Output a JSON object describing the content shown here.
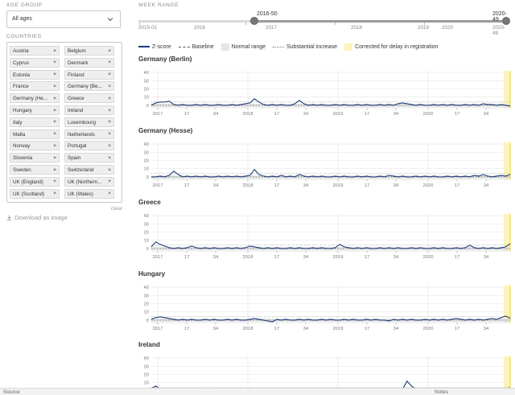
{
  "sidebar": {
    "age_group_label": "AGE GROUP",
    "age_group_value": "All ages",
    "countries_label": "COUNTRIES",
    "countries": [
      "Austria",
      "Belgium",
      "Cyprus",
      "Denmark",
      "Estonia",
      "Finland",
      "France",
      "Germany (Be...",
      "Germany (He...",
      "Greece",
      "Hungary",
      "Ireland",
      "Italy",
      "Luxembourg",
      "Malta",
      "Netherlands",
      "Norway",
      "Portugal",
      "Slovenia",
      "Spain",
      "Sweden",
      "Switzerland",
      "UK (England)",
      "UK (Northern...",
      "UK (Scotland)",
      "UK (Wales)"
    ],
    "chip_remove_symbol": "×",
    "clear_label": "clear",
    "download_label": "Download as image"
  },
  "week_range": {
    "label": "WEEK RANGE",
    "start_label": "2016-50",
    "end_label": "2020-49",
    "ticks": [
      "2015-01",
      "2016",
      "2017",
      "2018",
      "2019",
      "2020",
      "2020-49"
    ],
    "selection_start_week": "2016-50",
    "selection_end_week": "2020-49"
  },
  "legend": {
    "zscore": "Z-score",
    "baseline": "Baseline",
    "normal_range": "Normal range",
    "substantial_increase": "Substantial increase",
    "corrected": "Corrected for delay in registration"
  },
  "colors": {
    "zscore_line": "#1f3b7a",
    "normal_range": "#e8e8e8",
    "corrected_band": "#fbf4b8",
    "corrected_band_edge": "#f2e36a"
  },
  "chart_common": {
    "y_ticks": [
      "0",
      "10",
      "20",
      "30",
      "40"
    ],
    "x_ticks": [
      "2017",
      "17",
      "34",
      "2018",
      "17",
      "34",
      "2019",
      "17",
      "34",
      "2020",
      "17",
      "34"
    ]
  },
  "chart_data": [
    {
      "type": "line",
      "title": "Germany (Berlin)",
      "ylim": [
        -3,
        42
      ],
      "baseline": 0,
      "substantial_increase": 4,
      "series": [
        {
          "values": [
            0,
            3,
            4,
            4,
            5,
            1,
            0,
            1,
            0,
            0,
            1,
            0,
            1,
            0,
            0,
            1,
            0,
            0,
            1,
            0,
            1,
            2,
            3,
            8,
            4,
            1,
            0,
            1,
            0,
            1,
            0,
            0,
            2,
            6,
            2,
            0,
            1,
            0,
            1,
            0,
            0,
            1,
            0,
            1,
            0,
            0,
            1,
            0,
            1,
            0,
            0,
            1,
            0,
            1,
            0,
            2,
            3,
            2,
            1,
            0,
            1,
            0,
            0,
            1,
            0,
            1,
            0,
            1,
            0,
            0,
            1,
            0,
            1,
            0,
            2,
            1,
            1,
            0,
            1,
            0,
            -1
          ]
        }
      ]
    },
    {
      "type": "line",
      "title": "Germany (Hesse)",
      "ylim": [
        -3,
        42
      ],
      "baseline": 0,
      "substantial_increase": 4,
      "series": [
        {
          "values": [
            0,
            0,
            1,
            0,
            2,
            7,
            3,
            0,
            1,
            0,
            1,
            0,
            1,
            0,
            0,
            1,
            0,
            1,
            0,
            1,
            0,
            1,
            2,
            9,
            3,
            1,
            0,
            1,
            0,
            2,
            0,
            1,
            0,
            3,
            1,
            0,
            1,
            0,
            1,
            0,
            0,
            1,
            0,
            1,
            0,
            0,
            1,
            0,
            1,
            0,
            0,
            1,
            0,
            2,
            1,
            0,
            1,
            0,
            0,
            1,
            0,
            1,
            0,
            1,
            0,
            0,
            1,
            0,
            1,
            0,
            1,
            0,
            2,
            1,
            3,
            1,
            0,
            1,
            2,
            1,
            3
          ]
        }
      ]
    },
    {
      "type": "line",
      "title": "Greece",
      "ylim": [
        -3,
        42
      ],
      "baseline": 0,
      "substantial_increase": 4,
      "series": [
        {
          "values": [
            2,
            8,
            5,
            3,
            1,
            0,
            1,
            0,
            1,
            3,
            1,
            0,
            1,
            0,
            1,
            0,
            0,
            1,
            0,
            1,
            0,
            1,
            3,
            2,
            1,
            0,
            1,
            0,
            1,
            0,
            0,
            1,
            0,
            1,
            0,
            0,
            1,
            0,
            1,
            0,
            0,
            1,
            5,
            2,
            1,
            0,
            1,
            0,
            1,
            0,
            0,
            1,
            0,
            1,
            0,
            1,
            0,
            0,
            1,
            0,
            1,
            0,
            0,
            1,
            0,
            1,
            0,
            0,
            1,
            0,
            1,
            4,
            1,
            0,
            1,
            0,
            1,
            0,
            1,
            2,
            6
          ]
        }
      ]
    },
    {
      "type": "line",
      "title": "Hungary",
      "ylim": [
        -3,
        42
      ],
      "baseline": 0,
      "substantial_increase": 4,
      "series": [
        {
          "values": [
            1,
            3,
            4,
            3,
            2,
            1,
            0,
            1,
            0,
            1,
            0,
            0,
            1,
            0,
            1,
            0,
            0,
            1,
            0,
            1,
            0,
            0,
            1,
            2,
            1,
            0,
            -1,
            -2,
            1,
            0,
            1,
            0,
            0,
            1,
            0,
            1,
            0,
            0,
            1,
            0,
            1,
            0,
            0,
            1,
            0,
            1,
            0,
            0,
            1,
            0,
            1,
            0,
            0,
            -1,
            1,
            0,
            1,
            0,
            1,
            0,
            0,
            1,
            0,
            1,
            0,
            1,
            0,
            1,
            2,
            1,
            0,
            1,
            0,
            1,
            0,
            1,
            2,
            1,
            3,
            5,
            2
          ]
        }
      ]
    },
    {
      "type": "line",
      "title": "Ireland",
      "ylim": [
        -3,
        42
      ],
      "baseline": 0,
      "substantial_increase": 4,
      "series": [
        {
          "values": [
            3,
            6,
            2,
            1,
            0,
            1,
            0,
            1,
            0,
            0,
            1,
            0,
            1,
            0,
            0,
            1,
            0,
            1,
            0,
            0,
            1,
            0,
            1,
            0,
            0,
            1,
            0,
            1,
            0,
            0,
            1,
            0,
            1,
            0,
            0,
            1,
            0,
            1,
            0,
            0,
            1,
            0,
            1,
            0,
            0,
            1,
            0,
            1,
            0,
            0,
            1,
            0,
            1,
            0,
            0,
            1,
            2,
            12,
            6,
            2,
            1,
            0,
            1,
            0,
            1,
            0,
            0,
            1,
            0,
            1,
            0,
            1,
            0,
            0,
            1,
            0,
            1,
            0,
            1,
            2,
            4
          ]
        }
      ]
    }
  ],
  "bottom_bar": {
    "left": "Source",
    "right": "Notes"
  }
}
